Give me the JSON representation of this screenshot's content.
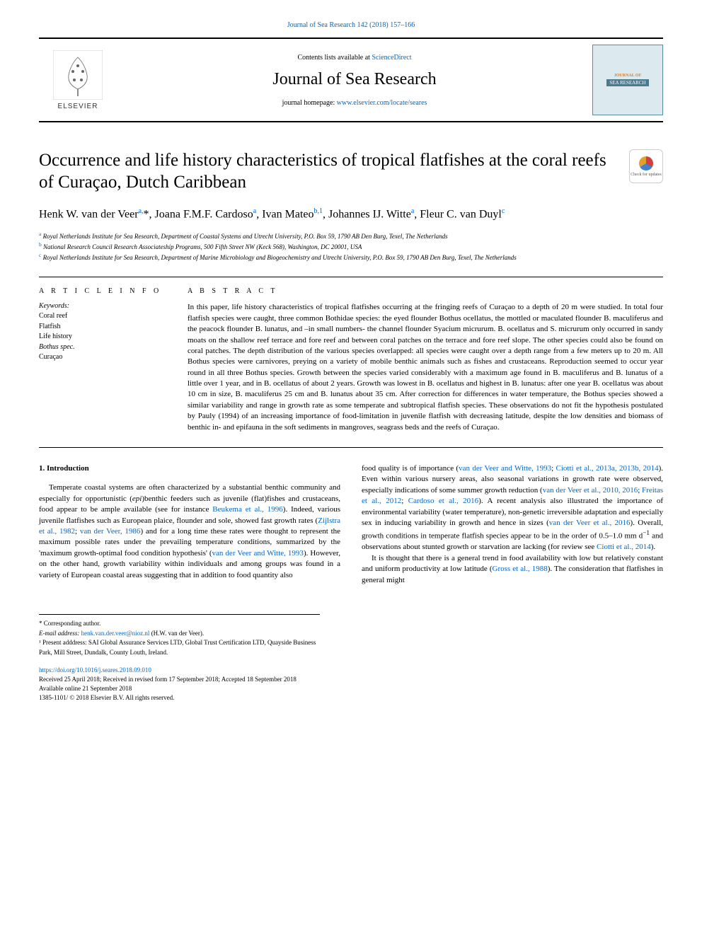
{
  "header": {
    "citation_link_text": "Journal of Sea Research 142 (2018) 157–166",
    "contents_prefix": "Contents lists available at ",
    "contents_link": "ScienceDirect",
    "journal_title": "Journal of Sea Research",
    "homepage_prefix": "journal homepage: ",
    "homepage_link": "www.elsevier.com/locate/seares",
    "publisher_name": "ELSEVIER",
    "cover_title": "JOURNAL OF",
    "cover_subtitle": "SEA RESEARCH"
  },
  "check_updates": {
    "label": "Check for updates"
  },
  "article": {
    "title": "Occurrence and life history characteristics of tropical flatfishes at the coral reefs of Curaçao, Dutch Caribbean",
    "authors_html": "Henk W. van der Veer<sup>a,</sup>*, Joana F.M.F. Cardoso<sup>a</sup>, Ivan Mateo<sup>b,1</sup>, Johannes IJ. Witte<sup>a</sup>, Fleur C. van Duyl<sup>c</sup>",
    "affiliations": {
      "a": "Royal Netherlands Institute for Sea Research, Department of Coastal Systems and Utrecht University, P.O. Box 59, 1790 AB Den Burg, Texel, The Netherlands",
      "b": "National Research Council Research Associateship Programs, 500 Fifth Street NW (Keck 568), Washington, DC 20001, USA",
      "c": "Royal Netherlands Institute for Sea Research, Department of Marine Microbiology and Biogeochemistry and Utrecht University, P.O. Box 59, 1790 AB Den Burg, Texel, The Netherlands"
    }
  },
  "article_info": {
    "label": "A R T I C L E  I N F O",
    "keywords_label": "Keywords:",
    "keywords": [
      "Coral reef",
      "Flatfish",
      "Life history",
      "Bothus spec.",
      "Curaçao"
    ]
  },
  "abstract": {
    "label": "A B S T R A C T",
    "text": "In this paper, life history characteristics of tropical flatfishes occurring at the fringing reefs of Curaçao to a depth of 20 m were studied. In total four flatfish species were caught, three common Bothidae species: the eyed flounder Bothus ocellatus, the mottled or maculated flounder B. maculiferus and the peacock flounder B. lunatus, and –in small numbers- the channel flounder Syacium micrurum. B. ocellatus and S. micrurum only occurred in sandy moats on the shallow reef terrace and fore reef and between coral patches on the terrace and fore reef slope. The other species could also be found on coral patches. The depth distribution of the various species overlapped: all species were caught over a depth range from a few meters up to 20 m. All Bothus species were carnivores, preying on a variety of mobile benthic animals such as fishes and crustaceans. Reproduction seemed to occur year round in all three Bothus species. Growth between the species varied considerably with a maximum age found in B. maculiferus and B. lunatus of a little over 1 year, and in B. ocellatus of about 2 years. Growth was lowest in B. ocellatus and highest in B. lunatus: after one year B. ocellatus was about 10 cm in size, B. maculiferus 25 cm and B. lunatus about 35 cm. After correction for differences in water temperature, the Bothus species showed a similar variability and range in growth rate as some temperate and subtropical flatfish species. These observations do not fit the hypothesis postulated by Pauly (1994) of an increasing importance of food-limitation in juvenile flatfish with decreasing latitude, despite the low densities and biomass of benthic in- and epifauna in the soft sediments in mangroves, seagrass beds and the reefs of Curaçao."
  },
  "body": {
    "intro_heading": "1. Introduction",
    "left_col_html": "Temperate coastal systems are often characterized by a substantial benthic community and especially for opportunistic (<i>epi</i>)benthic feeders such as juvenile (flat)fishes and crustaceans, food appear to be ample available (see for instance <a href='#'>Beukema et al., 1996</a>). Indeed, various juvenile flatfishes such as European plaice, flounder and sole, showed fast growth rates (<a href='#'>Zijlstra et al., 1982</a>; <a href='#'>van der Veer, 1986</a>) and for a long time these rates were thought to represent the maximum possible rates under the prevailing temperature conditions, summarized by the 'maximum growth-optimal food condition hypothesis' (<a href='#'>van der Veer and Witte, 1993</a>). However, on the other hand, growth variability within individuals and among groups was found in a variety of European coastal areas suggesting that in addition to food quantity also",
    "right_col_p1_html": "food quality is of importance (<a href='#'>van der Veer and Witte, 1993</a>; <a href='#'>Ciotti et al., 2013a, 2013b, 2014</a>). Even within various nursery areas, also seasonal variations in growth rate were observed, especially indications of some summer growth reduction (<a href='#'>van der Veer et al., 2010, 2016</a>; <a href='#'>Freitas et al., 2012</a>; <a href='#'>Cardoso et al., 2016</a>). A recent analysis also illustrated the importance of environmental variability (water temperature), non-genetic irreversible adaptation and especially sex in inducing variability in growth and hence in sizes (<a href='#'>van der Veer et al., 2016</a>). Overall, growth conditions in temperate flatfish species appear to be in the order of 0.5–1.0 mm d<sup>−1</sup> and observations about stunted growth or starvation are lacking (for review see <a href='#'>Ciotti et al., 2014</a>).",
    "right_col_p2_html": "It is thought that there is a general trend in food availability with low but relatively constant and uniform productivity at low latitude (<a href='#'>Gross et al., 1988</a>). The consideration that flatfishes in general might"
  },
  "footnotes": {
    "corresponding": "* Corresponding author.",
    "email_label": "E-mail address: ",
    "email": "henk.van.der.veer@nioz.nl",
    "email_person": " (H.W. van der Veer).",
    "present": "¹ Present adddress: SAI Global Assurance Services LTD, Global Trust Certification LTD, Quayside Business Park, Mill Street, Dundalk, County Louth, Ireland."
  },
  "footer": {
    "doi": "https://doi.org/10.1016/j.seares.2018.09.010",
    "received": "Received 25 April 2018; Received in revised form 17 September 2018; Accepted 18 September 2018",
    "available": "Available online 21 September 2018",
    "copyright": "1385-1101/ © 2018 Elsevier B.V. All rights reserved."
  },
  "colors": {
    "link": "#0066cc",
    "text": "#000000",
    "cover_bg": "#dceaf0",
    "cover_border": "#5a8aa0"
  }
}
